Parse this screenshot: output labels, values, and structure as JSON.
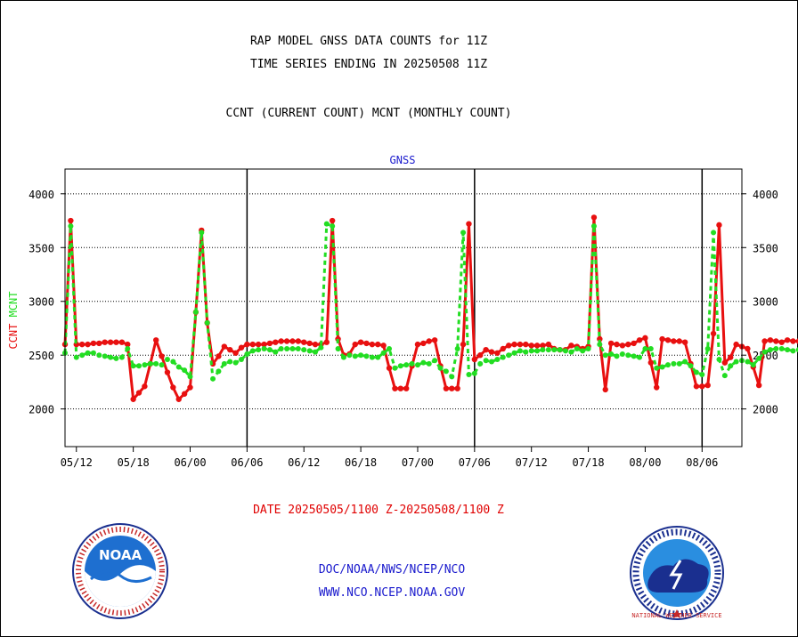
{
  "header": {
    "title_line1": "RAP MODEL GNSS DATA COUNTS for 11Z",
    "title_line2": "TIME SERIES ENDING IN 20250508 11Z",
    "subtitle": "CCNT (CURRENT COUNT) MCNT (MONTHLY COUNT)"
  },
  "footer": {
    "date_range": "DATE 20250505/1100 Z-20250508/1100 Z",
    "org_path": "DOC/NOAA/NWS/NCEP/NCO",
    "website": "WWW.NCO.NCEP.NOAA.GOV"
  },
  "logos": {
    "left": "NOAA",
    "right": "NATIONAL WEATHER SERVICE"
  },
  "colors": {
    "ccnt": "#e81010",
    "mcnt": "#22dd22",
    "panel_label": "#1a1acd"
  },
  "chart_data": {
    "type": "line",
    "panel_label": "GNSS",
    "ylabel_ccnt": "CCNT",
    "ylabel_mcnt": "MCNT",
    "ylim": [
      1650,
      4230
    ],
    "yticks": [
      2000,
      2500,
      3000,
      3500,
      4000
    ],
    "ytick_labels": [
      "2000",
      "2500",
      "3000",
      "3500",
      "4000"
    ],
    "xlim": [
      0,
      119
    ],
    "xticks": [
      2,
      12,
      22,
      32,
      42,
      52,
      62,
      72,
      82,
      92,
      102,
      112
    ],
    "xtick_labels": [
      "05/12",
      "05/18",
      "06/00",
      "06/06",
      "06/12",
      "06/18",
      "07/00",
      "07/06",
      "07/12",
      "07/18",
      "08/00",
      "08/06"
    ],
    "day_separators": [
      32,
      72,
      112
    ],
    "grid": true,
    "series": [
      {
        "name": "CCNT",
        "values": [
          2600,
          3750,
          2600,
          2600,
          2600,
          2610,
          2610,
          2620,
          2620,
          2620,
          2620,
          2600,
          2090,
          2150,
          2210,
          2420,
          2640,
          2490,
          2340,
          2200,
          2090,
          2140,
          2200,
          2900,
          3660,
          2800,
          2420,
          2490,
          2580,
          2550,
          2520,
          2570,
          2600,
          2600,
          2600,
          2600,
          2610,
          2620,
          2630,
          2630,
          2630,
          2630,
          2620,
          2610,
          2600,
          2600,
          2620,
          3750,
          2650,
          2500,
          2510,
          2600,
          2620,
          2610,
          2600,
          2600,
          2590,
          2380,
          2190,
          2190,
          2190,
          2400,
          2600,
          2610,
          2630,
          2640,
          2400,
          2190,
          2190,
          2190,
          2600,
          3720,
          2460,
          2500,
          2550,
          2530,
          2520,
          2560,
          2590,
          2600,
          2600,
          2600,
          2590,
          2590,
          2590,
          2600,
          2560,
          2550,
          2550,
          2590,
          2580,
          2560,
          2580,
          3780,
          2650,
          2180,
          2610,
          2600,
          2590,
          2600,
          2610,
          2640,
          2660,
          2430,
          2200,
          2650,
          2640,
          2630,
          2630,
          2620,
          2420,
          2210,
          2210,
          2220,
          2700,
          3710,
          2430,
          2480,
          2600,
          2580,
          2560,
          2390,
          2220,
          2630,
          2640,
          2630,
          2620,
          2640,
          2630,
          2630,
          2620,
          2620,
          2610,
          2620,
          2640
        ]
      },
      {
        "name": "MCNT",
        "values": [
          2520,
          3700,
          2480,
          2500,
          2520,
          2520,
          2500,
          2490,
          2480,
          2470,
          2480,
          2560,
          2400,
          2400,
          2410,
          2420,
          2420,
          2410,
          2460,
          2440,
          2390,
          2360,
          2300,
          2900,
          3640,
          2800,
          2280,
          2350,
          2420,
          2440,
          2430,
          2460,
          2510,
          2540,
          2550,
          2560,
          2550,
          2530,
          2560,
          2560,
          2560,
          2560,
          2550,
          2540,
          2530,
          2570,
          3720,
          3700,
          2560,
          2480,
          2500,
          2490,
          2500,
          2490,
          2480,
          2480,
          2520,
          2560,
          2380,
          2400,
          2410,
          2420,
          2410,
          2430,
          2420,
          2450,
          2380,
          2350,
          2300,
          2560,
          3640,
          2320,
          2330,
          2420,
          2450,
          2440,
          2460,
          2480,
          2500,
          2520,
          2540,
          2530,
          2540,
          2540,
          2550,
          2550,
          2550,
          2550,
          2540,
          2530,
          2560,
          2540,
          2560,
          3700,
          2600,
          2500,
          2510,
          2490,
          2510,
          2500,
          2490,
          2480,
          2560,
          2560,
          2380,
          2390,
          2410,
          2420,
          2420,
          2440,
          2400,
          2340,
          2320,
          2560,
          3640,
          2460,
          2310,
          2400,
          2440,
          2450,
          2440,
          2410,
          2470,
          2530,
          2550,
          2560,
          2560,
          2550,
          2540,
          2550,
          2560,
          2550,
          2550,
          2550,
          2540,
          2530
        ]
      }
    ]
  }
}
